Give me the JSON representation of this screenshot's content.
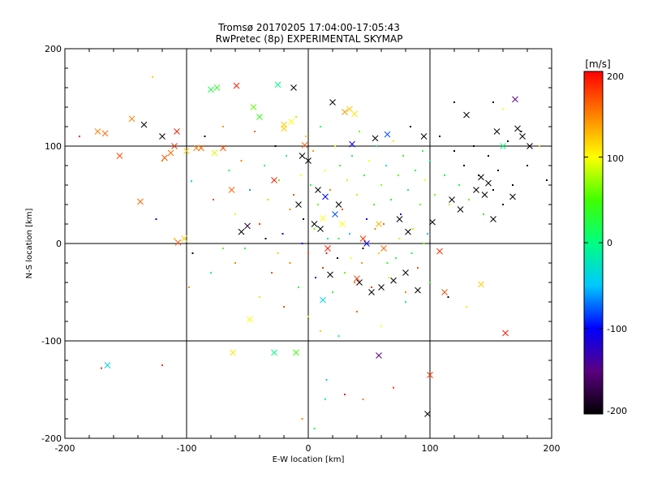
{
  "chart_data": {
    "type": "scatter",
    "title": "Tromsø 20170205 17:04:00-17:05:43",
    "subtitle": "RwPretec (8p) EXPERIMENTAL SKYMAP",
    "xlabel": "E-W location [km]",
    "ylabel": "N-S location [km]",
    "xlim": [
      -200,
      200
    ],
    "ylim": [
      -200,
      200
    ],
    "x_ticks": [
      "-200",
      "-100",
      "0",
      "100",
      "200"
    ],
    "y_ticks": [
      "-200",
      "-100",
      "0",
      "100",
      "200"
    ],
    "grid": true,
    "colorbar": {
      "label": "[m/s]",
      "range": [
        -200,
        200
      ],
      "ticks": [
        "200",
        "100",
        "0",
        "-100",
        "-200"
      ],
      "colors": [
        "#000000",
        "#5a0080",
        "#0000ff",
        "#00c8ff",
        "#00ff80",
        "#40ff00",
        "#ffff00",
        "#ff8000",
        "#ff0000"
      ]
    },
    "series": [
      {
        "marker": "x",
        "points": [
          [
            -173,
            115,
            150
          ],
          [
            -167,
            113,
            160
          ],
          [
            -155,
            90,
            170
          ],
          [
            -145,
            128,
            150
          ],
          [
            -138,
            43,
            160
          ],
          [
            -135,
            122,
            -200
          ],
          [
            -120,
            110,
            -200
          ],
          [
            -118,
            88,
            170
          ],
          [
            -113,
            93,
            160
          ],
          [
            -110,
            100,
            180
          ],
          [
            -108,
            115,
            190
          ],
          [
            -107,
            1,
            170
          ],
          [
            -102,
            5,
            120
          ],
          [
            -100,
            95,
            120
          ],
          [
            -92,
            98,
            150
          ],
          [
            -88,
            98,
            160
          ],
          [
            -80,
            158,
            20
          ],
          [
            -77,
            93,
            90
          ],
          [
            -75,
            160,
            40
          ],
          [
            -70,
            98,
            170
          ],
          [
            -63,
            55,
            160
          ],
          [
            -59,
            162,
            190
          ],
          [
            -55,
            12,
            -200
          ],
          [
            -50,
            18,
            -180
          ],
          [
            -45,
            140,
            60
          ],
          [
            -40,
            130,
            40
          ],
          [
            -28,
            65,
            190
          ],
          [
            -25,
            163,
            0
          ],
          [
            -20,
            118,
            120
          ],
          [
            -12,
            160,
            -200
          ],
          [
            -8,
            40,
            -200
          ],
          [
            -5,
            90,
            -200
          ],
          [
            0,
            85,
            -200
          ],
          [
            5,
            20,
            -200
          ],
          [
            8,
            55,
            -200
          ],
          [
            10,
            15,
            -200
          ],
          [
            12,
            26,
            100
          ],
          [
            14,
            48,
            -100
          ],
          [
            16,
            -5,
            190
          ],
          [
            18,
            -32,
            -200
          ],
          [
            20,
            145,
            -200
          ],
          [
            22,
            30,
            -80
          ],
          [
            25,
            40,
            -200
          ],
          [
            28,
            20,
            100
          ],
          [
            30,
            135,
            140
          ],
          [
            34,
            138,
            120
          ],
          [
            36,
            102,
            -100
          ],
          [
            40,
            -36,
            180
          ],
          [
            42,
            -40,
            -200
          ],
          [
            45,
            5,
            180
          ],
          [
            48,
            0,
            -100
          ],
          [
            52,
            -50,
            -200
          ],
          [
            55,
            108,
            -200
          ],
          [
            58,
            20,
            130
          ],
          [
            60,
            -45,
            -200
          ],
          [
            62,
            -5,
            160
          ],
          [
            65,
            112,
            -80
          ],
          [
            70,
            -38,
            -200
          ],
          [
            75,
            25,
            -200
          ],
          [
            80,
            -30,
            -200
          ],
          [
            82,
            12,
            -200
          ],
          [
            90,
            -48,
            -200
          ],
          [
            95,
            110,
            -200
          ],
          [
            98,
            -175,
            -200
          ],
          [
            100,
            -135,
            180
          ],
          [
            102,
            22,
            -200
          ],
          [
            108,
            -8,
            180
          ],
          [
            112,
            -50,
            170
          ],
          [
            118,
            45,
            -200
          ],
          [
            125,
            35,
            -200
          ],
          [
            130,
            132,
            -200
          ],
          [
            138,
            55,
            -200
          ],
          [
            142,
            68,
            -200
          ],
          [
            145,
            50,
            -200
          ],
          [
            148,
            62,
            -200
          ],
          [
            152,
            25,
            -200
          ],
          [
            155,
            115,
            -200
          ],
          [
            160,
            100,
            0
          ],
          [
            162,
            -92,
            190
          ],
          [
            168,
            48,
            -200
          ],
          [
            172,
            118,
            -200
          ],
          [
            176,
            110,
            -200
          ],
          [
            182,
            100,
            -200
          ],
          [
            170,
            148,
            -150
          ],
          [
            -165,
            -125,
            -40
          ],
          [
            -62,
            -112,
            110
          ],
          [
            -48,
            -78,
            100
          ],
          [
            -28,
            -112,
            0
          ],
          [
            -10,
            -112,
            50
          ],
          [
            12,
            -58,
            -40
          ],
          [
            58,
            -115,
            -150
          ],
          [
            142,
            -42,
            120
          ],
          [
            -3,
            101,
            170
          ],
          [
            -14,
            125,
            100
          ],
          [
            -20,
            122,
            120
          ],
          [
            38,
            133,
            110
          ]
        ]
      },
      {
        "marker": "dot",
        "points": [
          [
            -128,
            171,
            120
          ],
          [
            -120,
            85,
            150
          ],
          [
            -96,
            64,
            -40
          ],
          [
            -85,
            110,
            -200
          ],
          [
            -78,
            45,
            170
          ],
          [
            -70,
            120,
            140
          ],
          [
            -65,
            75,
            20
          ],
          [
            -60,
            30,
            110
          ],
          [
            -55,
            85,
            150
          ],
          [
            -52,
            -5,
            30
          ],
          [
            -48,
            55,
            -60
          ],
          [
            -44,
            115,
            160
          ],
          [
            -40,
            20,
            180
          ],
          [
            -36,
            80,
            10
          ],
          [
            -33,
            45,
            120
          ],
          [
            -30,
            -30,
            170
          ],
          [
            -27,
            100,
            -200
          ],
          [
            -24,
            65,
            60
          ],
          [
            -21,
            10,
            -100
          ],
          [
            -18,
            90,
            10
          ],
          [
            -15,
            -20,
            150
          ],
          [
            -12,
            50,
            170
          ],
          [
            -10,
            130,
            80
          ],
          [
            -8,
            -45,
            30
          ],
          [
            -6,
            70,
            100
          ],
          [
            -4,
            25,
            -200
          ],
          [
            -2,
            110,
            120
          ],
          [
            0,
            -10,
            170
          ],
          [
            2,
            60,
            20
          ],
          [
            4,
            95,
            140
          ],
          [
            6,
            -35,
            -100
          ],
          [
            8,
            40,
            60
          ],
          [
            10,
            120,
            10
          ],
          [
            12,
            -25,
            180
          ],
          [
            14,
            75,
            100
          ],
          [
            16,
            5,
            -20
          ],
          [
            18,
            55,
            150
          ],
          [
            20,
            -50,
            30
          ],
          [
            22,
            100,
            90
          ],
          [
            24,
            -15,
            -200
          ],
          [
            26,
            80,
            40
          ],
          [
            28,
            35,
            170
          ],
          [
            30,
            -30,
            60
          ],
          [
            32,
            65,
            110
          ],
          [
            34,
            10,
            -50
          ],
          [
            36,
            90,
            20
          ],
          [
            38,
            -40,
            150
          ],
          [
            40,
            50,
            80
          ],
          [
            42,
            115,
            60
          ],
          [
            44,
            -20,
            140
          ],
          [
            46,
            70,
            30
          ],
          [
            48,
            25,
            -100
          ],
          [
            50,
            85,
            100
          ],
          [
            52,
            -45,
            180
          ],
          [
            54,
            40,
            50
          ],
          [
            56,
            100,
            10
          ],
          [
            58,
            -10,
            120
          ],
          [
            60,
            60,
            70
          ],
          [
            62,
            20,
            160
          ],
          [
            64,
            80,
            -30
          ],
          [
            66,
            -35,
            90
          ],
          [
            68,
            45,
            30
          ],
          [
            70,
            105,
            110
          ],
          [
            72,
            -15,
            20
          ],
          [
            74,
            70,
            60
          ],
          [
            76,
            30,
            -100
          ],
          [
            78,
            90,
            40
          ],
          [
            80,
            -50,
            150
          ],
          [
            82,
            55,
            10
          ],
          [
            84,
            120,
            -200
          ],
          [
            86,
            15,
            80
          ],
          [
            88,
            75,
            20
          ],
          [
            90,
            -25,
            170
          ],
          [
            92,
            40,
            60
          ],
          [
            94,
            95,
            30
          ],
          [
            96,
            65,
            100
          ],
          [
            98,
            10,
            -50
          ],
          [
            100,
            85,
            0
          ],
          [
            104,
            50,
            60
          ],
          [
            108,
            110,
            -200
          ],
          [
            112,
            70,
            30
          ],
          [
            116,
            40,
            80
          ],
          [
            120,
            95,
            -200
          ],
          [
            124,
            60,
            20
          ],
          [
            128,
            80,
            -200
          ],
          [
            132,
            45,
            60
          ],
          [
            136,
            100,
            -200
          ],
          [
            140,
            70,
            -200
          ],
          [
            144,
            30,
            40
          ],
          [
            148,
            90,
            -200
          ],
          [
            152,
            55,
            -200
          ],
          [
            156,
            75,
            -200
          ],
          [
            160,
            40,
            -200
          ],
          [
            164,
            105,
            -200
          ],
          [
            168,
            60,
            -200
          ],
          [
            175,
            115,
            -200
          ],
          [
            180,
            80,
            -200
          ],
          [
            190,
            100,
            120
          ],
          [
            196,
            65,
            -200
          ],
          [
            -98,
            -45,
            140
          ],
          [
            -80,
            -30,
            0
          ],
          [
            -60,
            -20,
            150
          ],
          [
            -40,
            -55,
            110
          ],
          [
            -20,
            -65,
            170
          ],
          [
            0,
            -75,
            90
          ],
          [
            10,
            -90,
            120
          ],
          [
            25,
            -95,
            20
          ],
          [
            40,
            -70,
            160
          ],
          [
            60,
            -85,
            100
          ],
          [
            80,
            -60,
            10
          ],
          [
            100,
            -40,
            40
          ],
          [
            115,
            -55,
            -200
          ],
          [
            130,
            -65,
            110
          ],
          [
            -120,
            -125,
            180
          ],
          [
            -170,
            -128,
            180
          ],
          [
            15,
            -140,
            -40
          ],
          [
            30,
            -155,
            190
          ],
          [
            45,
            -160,
            150
          ],
          [
            70,
            -148,
            180
          ],
          [
            5,
            -190,
            30
          ],
          [
            -5,
            -180,
            150
          ],
          [
            14,
            -160,
            0
          ],
          [
            160,
            138,
            100
          ],
          [
            152,
            145,
            -200
          ],
          [
            120,
            145,
            -200
          ],
          [
            -188,
            110,
            180
          ],
          [
            -125,
            25,
            -100
          ],
          [
            -110,
            5,
            120
          ],
          [
            -95,
            -10,
            -200
          ],
          [
            -70,
            -5,
            60
          ],
          [
            -35,
            5,
            -200
          ],
          [
            -25,
            -10,
            120
          ],
          [
            -15,
            35,
            150
          ],
          [
            -5,
            0,
            -100
          ],
          [
            5,
            15,
            60
          ],
          [
            15,
            -10,
            190
          ],
          [
            25,
            5,
            20
          ],
          [
            35,
            -15,
            100
          ],
          [
            45,
            -5,
            -200
          ],
          [
            55,
            15,
            150
          ],
          [
            65,
            -20,
            40
          ],
          [
            75,
            5,
            80
          ],
          [
            85,
            -10,
            20
          ],
          [
            95,
            0,
            60
          ]
        ]
      }
    ]
  }
}
